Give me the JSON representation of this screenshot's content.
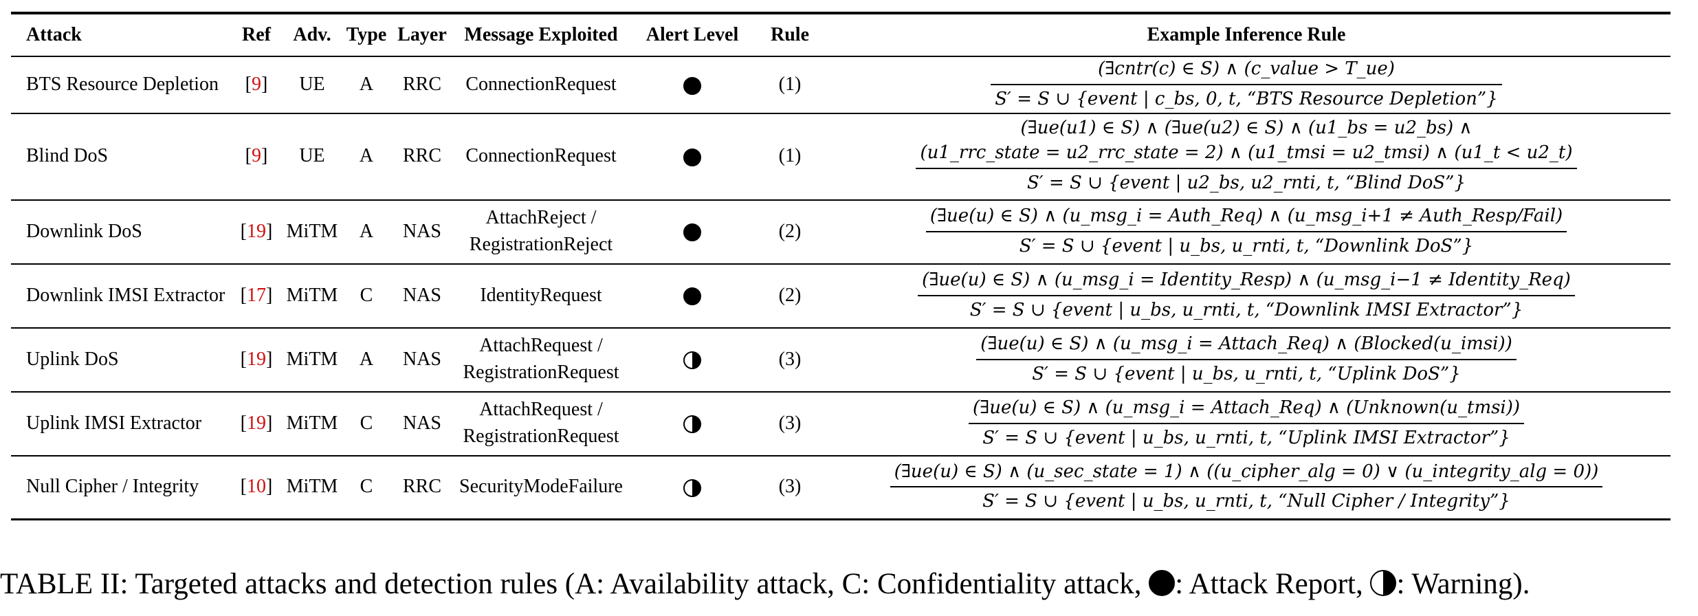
{
  "table": {
    "headers": {
      "attack": "Attack",
      "ref": "Ref",
      "adv": "Adv.",
      "type": "Type",
      "layer": "Layer",
      "message": "Message Exploited",
      "alert": "Alert Level",
      "rule": "Rule",
      "example": "Example Inference Rule"
    },
    "rows": [
      {
        "attack": "BTS Resource Depletion",
        "ref": "9",
        "adv": "UE",
        "type": "A",
        "layer": "RRC",
        "message": [
          "ConnectionRequest"
        ],
        "alert_icon": "filled-circle-icon",
        "rule": "(1)",
        "premise": [
          "(∃cntr(c) ∈ S) ∧ (c_value > T_ue)"
        ],
        "conclusion": "S′ = S ∪ {event | c_bs, 0, t, “BTS Resource Depletion”}"
      },
      {
        "attack": "Blind DoS",
        "ref": "9",
        "adv": "UE",
        "type": "A",
        "layer": "RRC",
        "message": [
          "ConnectionRequest"
        ],
        "alert_icon": "filled-circle-icon",
        "rule": "(1)",
        "premise": [
          "(∃ue(u1) ∈ S) ∧ (∃ue(u2) ∈ S) ∧ (u1_bs = u2_bs) ∧",
          "(u1_rrc_state = u2_rrc_state = 2) ∧ (u1_tmsi = u2_tmsi) ∧ (u1_t < u2_t)"
        ],
        "conclusion": "S′ = S ∪ {event | u2_bs, u2_rnti, t, “Blind DoS”}"
      },
      {
        "attack": "Downlink DoS",
        "ref": "19",
        "adv": "MiTM",
        "type": "A",
        "layer": "NAS",
        "message": [
          "AttachReject /",
          "RegistrationReject"
        ],
        "alert_icon": "filled-circle-icon",
        "rule": "(2)",
        "premise": [
          "(∃ue(u) ∈ S) ∧ (u_msg_i = Auth_Req) ∧ (u_msg_i+1 ≠ Auth_Resp/Fail)"
        ],
        "conclusion": "S′ = S ∪ {event | u_bs, u_rnti, t, “Downlink DoS”}"
      },
      {
        "attack": "Downlink IMSI Extractor",
        "ref": "17",
        "adv": "MiTM",
        "type": "C",
        "layer": "NAS",
        "message": [
          "IdentityRequest"
        ],
        "alert_icon": "filled-circle-icon",
        "rule": "(2)",
        "premise": [
          "(∃ue(u) ∈ S) ∧ (u_msg_i = Identity_Resp) ∧ (u_msg_i−1 ≠ Identity_Req)"
        ],
        "conclusion": "S′ = S ∪ {event | u_bs, u_rnti, t, “Downlink IMSI Extractor”}"
      },
      {
        "attack": "Uplink DoS",
        "ref": "19",
        "adv": "MiTM",
        "type": "A",
        "layer": "NAS",
        "message": [
          "AttachRequest /",
          "RegistrationRequest"
        ],
        "alert_icon": "half-circle-icon",
        "rule": "(3)",
        "premise": [
          "(∃ue(u) ∈ S) ∧ (u_msg_i = Attach_Req) ∧ (Blocked(u_imsi))"
        ],
        "conclusion": "S′ = S ∪ {event | u_bs, u_rnti, t, “Uplink DoS”}"
      },
      {
        "attack": "Uplink IMSI Extractor",
        "ref": "19",
        "adv": "MiTM",
        "type": "C",
        "layer": "NAS",
        "message": [
          "AttachRequest /",
          "RegistrationRequest"
        ],
        "alert_icon": "half-circle-icon",
        "rule": "(3)",
        "premise": [
          "(∃ue(u) ∈ S) ∧ (u_msg_i = Attach_Req) ∧ (Unknown(u_tmsi))"
        ],
        "conclusion": "S′ = S ∪ {event | u_bs, u_rnti, t, “Uplink IMSI Extractor”}"
      },
      {
        "attack": "Null Cipher / Integrity",
        "ref": "10",
        "adv": "MiTM",
        "type": "C",
        "layer": "RRC",
        "message": [
          "SecurityModeFailure"
        ],
        "alert_icon": "half-circle-icon",
        "rule": "(3)",
        "premise": [
          "(∃ue(u) ∈ S) ∧ (u_sec_state = 1) ∧ ((u_cipher_alg = 0) ∨ (u_integrity_alg = 0))"
        ],
        "conclusion": "S′ = S ∪ {event | u_bs, u_rnti, t, “Null Cipher / Integrity”}"
      }
    ]
  },
  "caption": {
    "part1": "TABLE II: Targeted attacks and detection rules (A: Availability attack, C: Confidentiality attack, ",
    "part2": ": Attack Report, ",
    "part3": ": Warning)."
  },
  "colors": {
    "ref_link": "#d01010",
    "text": "#000000"
  }
}
